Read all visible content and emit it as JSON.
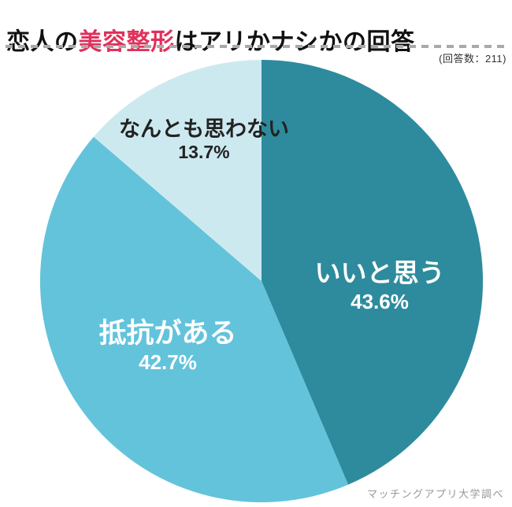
{
  "header": {
    "title": {
      "pre": "恋人の",
      "highlight": "美容整形",
      "post": "はアリかナシかの回答"
    },
    "sample_count": "(回答数：211)"
  },
  "footer": {
    "source": "マッチングアプリ大学調べ"
  },
  "colors": {
    "title_text": "#111111",
    "title_highlight": "#e0315c",
    "divider": "#a9a9a9",
    "slice_dark_teal": "#2e8b9e",
    "slice_light_blue": "#63c3db",
    "slice_pale_blue": "#cde9f0",
    "footer_text": "#989898"
  },
  "chart_data": {
    "type": "pie",
    "title": "恋人の美容整形はアリかナシかの回答",
    "categories": [
      "いいと思う",
      "抵抗がある",
      "なんとも思わない"
    ],
    "values": [
      43.6,
      42.7,
      13.7
    ],
    "unit": "%",
    "sample_size": 211,
    "start_angle": "12-oclock",
    "direction": "clockwise",
    "legend_position": "labels-on-slices",
    "source": "マッチングアプリ大学調べ",
    "slices": [
      {
        "label": "いいと思う",
        "value": 43.6,
        "pct": "43.6%",
        "color": "#2e8b9e",
        "text_color": "#ffffff"
      },
      {
        "label": "抵抗がある",
        "value": 42.7,
        "pct": "42.7%",
        "color": "#63c3db",
        "text_color": "#ffffff"
      },
      {
        "label": "なんとも思わない",
        "value": 13.7,
        "pct": "13.7%",
        "color": "#cde9f0",
        "text_color": "#222222"
      }
    ]
  }
}
